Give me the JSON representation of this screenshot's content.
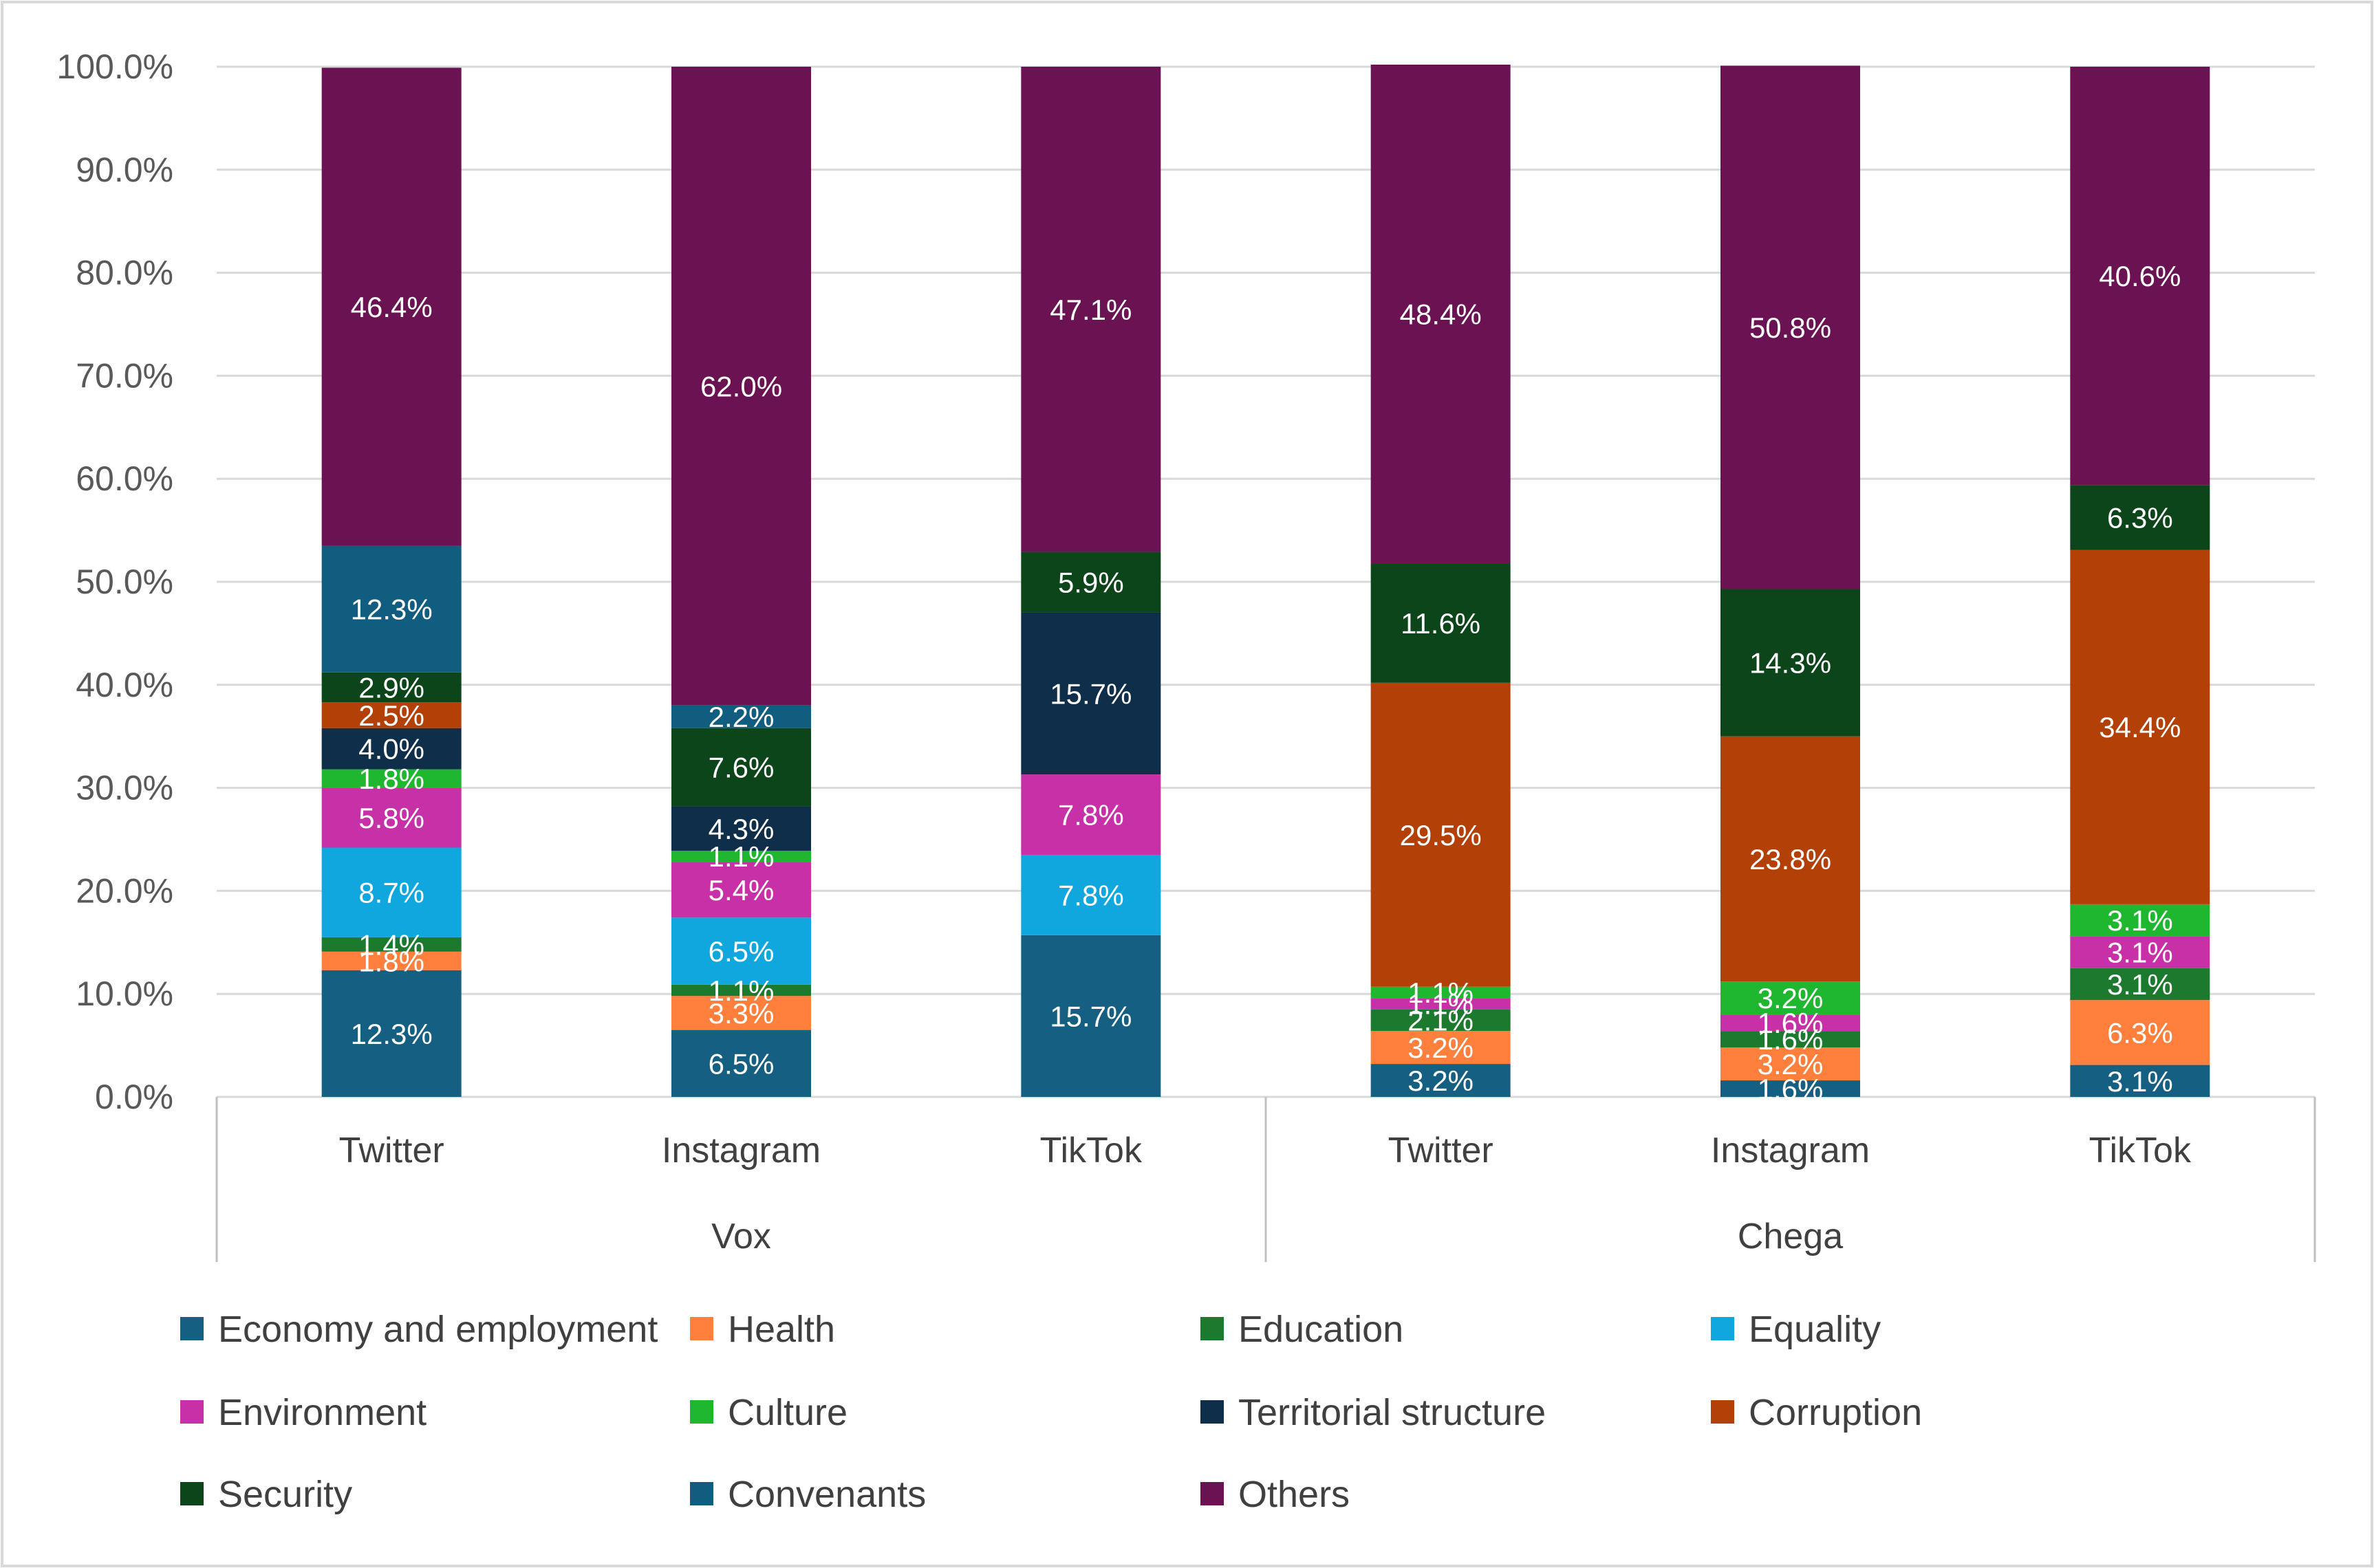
{
  "chart_data": {
    "type": "bar",
    "stacked": true,
    "title": "",
    "xlabel": "",
    "ylabel": "",
    "ylim": [
      0,
      100
    ],
    "y_ticks": [
      "0.0%",
      "10.0%",
      "20.0%",
      "30.0%",
      "40.0%",
      "50.0%",
      "60.0%",
      "70.0%",
      "80.0%",
      "90.0%",
      "100.0%"
    ],
    "grid": true,
    "legend_position": "bottom",
    "groups": [
      {
        "name": "Vox",
        "categories": [
          "Twitter",
          "Instagram",
          "TikTok"
        ]
      },
      {
        "name": "Chega",
        "categories": [
          "Twitter",
          "Instagram",
          "TikTok"
        ]
      }
    ],
    "categories": [
      "Twitter",
      "Instagram",
      "TikTok",
      "Twitter",
      "Instagram",
      "TikTok"
    ],
    "series": [
      {
        "name": "Economy and employment",
        "color": "#156082",
        "values": [
          12.3,
          6.5,
          15.7,
          3.2,
          1.6,
          3.1
        ],
        "labels": [
          "12.3%",
          "6.5%",
          "15.7%",
          "3.2%",
          "1.6%",
          "3.1%"
        ]
      },
      {
        "name": "Health",
        "color": "#FF7F3C",
        "values": [
          1.8,
          3.3,
          0,
          3.2,
          3.2,
          6.3
        ],
        "labels": [
          "1.8%",
          "3.3%",
          "",
          "3.2%",
          "3.2%",
          "6.3%"
        ]
      },
      {
        "name": "Education",
        "color": "#1B7A2E",
        "values": [
          1.4,
          1.1,
          0,
          2.1,
          1.6,
          3.1
        ],
        "labels": [
          "1.4%",
          "1.1%",
          "",
          "2.1%",
          "1.6%",
          "3.1%"
        ]
      },
      {
        "name": "Equality",
        "color": "#10A6DE",
        "values": [
          8.7,
          6.5,
          7.8,
          0,
          0,
          0
        ],
        "labels": [
          "8.7%",
          "6.5%",
          "7.8%",
          "",
          "",
          ""
        ]
      },
      {
        "name": "Environment",
        "color": "#C730A6",
        "values": [
          5.8,
          5.4,
          7.8,
          1.1,
          1.6,
          3.1
        ],
        "labels": [
          "5.8%",
          "5.4%",
          "7.8%",
          "1.1%",
          "1.6%",
          "3.1%"
        ]
      },
      {
        "name": "Culture",
        "color": "#1FB630",
        "values": [
          1.8,
          1.1,
          0,
          1.1,
          3.2,
          3.1
        ],
        "labels": [
          "1.8%",
          "1.1%",
          "",
          "1.1%",
          "3.2%",
          "3.1%"
        ]
      },
      {
        "name": "Territorial structure",
        "color": "#0E2E4A",
        "values": [
          4.0,
          4.3,
          15.7,
          0,
          0,
          0
        ],
        "labels": [
          "4.0%",
          "4.3%",
          "15.7%",
          "",
          "",
          ""
        ]
      },
      {
        "name": "Corruption",
        "color": "#B34006",
        "values": [
          2.5,
          0,
          0,
          29.5,
          23.8,
          34.4
        ],
        "labels": [
          "2.5%",
          "",
          "",
          "29.5%",
          "23.8%",
          "34.4%"
        ]
      },
      {
        "name": "Security",
        "color": "#0C4519",
        "values": [
          2.9,
          7.6,
          5.9,
          11.6,
          14.3,
          6.3
        ],
        "labels": [
          "2.9%",
          "7.6%",
          "5.9%",
          "11.6%",
          "14.3%",
          "6.3%"
        ]
      },
      {
        "name": "Convenants",
        "color": "#115D80",
        "values": [
          12.3,
          2.2,
          0,
          0,
          0,
          0
        ],
        "labels": [
          "12.3%",
          "2.2%",
          "",
          "",
          "",
          ""
        ]
      },
      {
        "name": "Others",
        "color": "#6A1252",
        "values": [
          46.4,
          62.0,
          47.1,
          48.4,
          50.8,
          40.6
        ],
        "labels": [
          "46.4%",
          "62.0%",
          "47.1%",
          "48.4%",
          "50.8%",
          "40.6%"
        ]
      }
    ]
  }
}
